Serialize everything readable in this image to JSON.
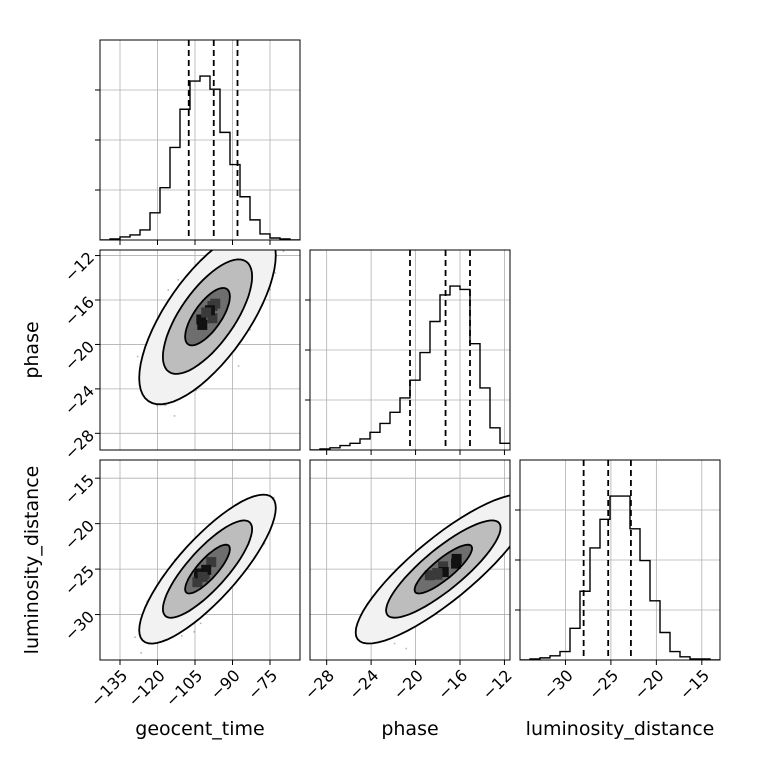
{
  "chart_data": {
    "type": "corner",
    "grid": true,
    "parameters": [
      {
        "name": "geocent_time",
        "label": "geocent_time",
        "range": [
          -143,
          -63
        ],
        "ticks": [
          -135,
          -120,
          -105,
          -90,
          -75
        ],
        "tick_labels": [
          "−135",
          "−120",
          "−105",
          "−90",
          "−75"
        ],
        "quantiles": [
          -107.5,
          -97.5,
          -88
        ],
        "histogram": {
          "bin_start": -143,
          "bin_width": 4,
          "counts": [
            0,
            1,
            3,
            5,
            10,
            27,
            52,
            92,
            130,
            158,
            163,
            150,
            107,
            75,
            43,
            20,
            6,
            2,
            1,
            0
          ]
        }
      },
      {
        "name": "phase",
        "label": "phase",
        "range": [
          -29.5,
          -11.5
        ],
        "ticks": [
          -28,
          -24,
          -20,
          -16,
          -12
        ],
        "tick_labels": [
          "−28",
          "−24",
          "−20",
          "−16",
          "−12"
        ],
        "quantiles": [
          -20.5,
          -17.3,
          -15.1
        ],
        "histogram": {
          "bin_start": -29.5,
          "bin_width": 0.9,
          "counts": [
            0,
            1,
            2,
            4,
            6,
            10,
            16,
            24,
            34,
            47,
            63,
            88,
            116,
            140,
            148,
            145,
            96,
            56,
            20,
            6
          ]
        }
      },
      {
        "name": "luminosity_distance",
        "label": "luminosity_distance",
        "range": [
          -35,
          -13
        ],
        "ticks": [
          -30,
          -25,
          -20,
          -15
        ],
        "tick_labels": [
          "−30",
          "−25",
          "−20",
          "−15"
        ],
        "quantiles": [
          -28,
          -25.3,
          -22.8
        ],
        "histogram": {
          "bin_start": -35,
          "bin_width": 1.1,
          "counts": [
            0,
            1,
            2,
            4,
            8,
            30,
            65,
            106,
            133,
            155,
            155,
            124,
            94,
            56,
            26,
            8,
            3,
            1,
            1,
            0
          ]
        }
      }
    ],
    "pairs": [
      {
        "x": "geocent_time",
        "y": "phase",
        "center": [
          -100,
          -17.5
        ],
        "spread": [
          9,
          2.6
        ],
        "correlation": 0.7,
        "contour_levels": [
          0.39,
          0.86,
          0.99
        ],
        "samples": 1300
      },
      {
        "x": "geocent_time",
        "y": "luminosity_distance",
        "center": [
          -100,
          -25
        ],
        "spread": [
          9,
          2.7
        ],
        "correlation": 0.82,
        "contour_levels": [
          0.39,
          0.86,
          0.99
        ],
        "samples": 1300
      },
      {
        "x": "phase",
        "y": "luminosity_distance",
        "center": [
          -17.5,
          -25
        ],
        "spread": [
          2.6,
          2.7
        ],
        "correlation": 0.85,
        "contour_levels": [
          0.39,
          0.86,
          0.99
        ],
        "samples": 1300
      }
    ]
  }
}
